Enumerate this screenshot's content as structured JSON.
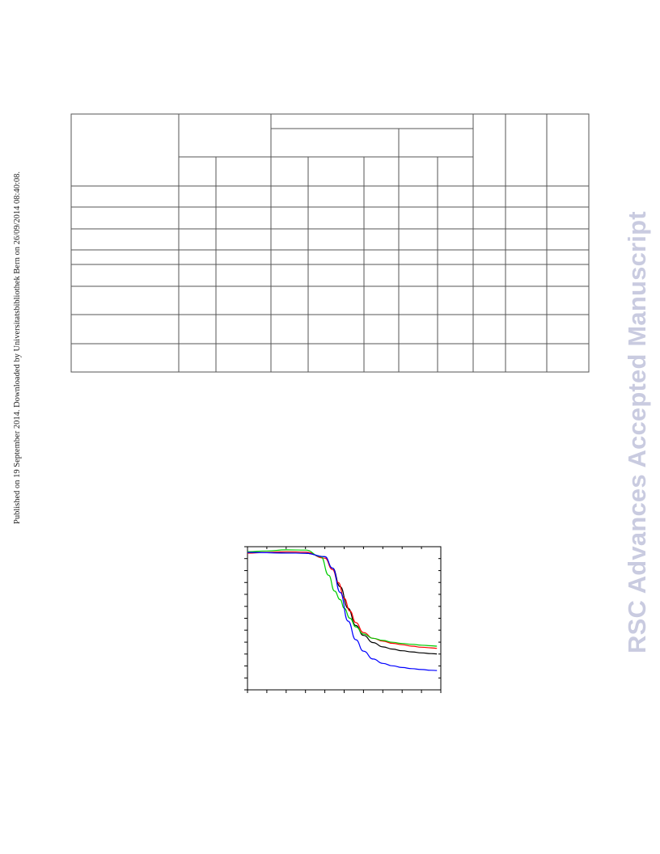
{
  "side_note": "Published on 19 September 2014. Downloaded by Universitatsbibliothek Bern on 26/09/2014 08:40:08.",
  "watermark": "RSC Advances Accepted Manuscript",
  "table": {
    "header_rows": 3,
    "body_rows": 8,
    "columns": 11,
    "cells": []
  },
  "chart_data": {
    "type": "line",
    "title": "",
    "xlabel": "",
    "ylabel": "",
    "tick_labels_visible": false,
    "x_scale": "linear",
    "y_scale": "linear",
    "xlim": [
      0,
      100
    ],
    "ylim": [
      0,
      100
    ],
    "grid": false,
    "x_major_ticks": [
      0,
      10,
      20,
      30,
      40,
      50,
      60,
      70,
      80,
      90,
      100
    ],
    "y_major_ticks": [
      0,
      8.3,
      16.7,
      25,
      33.3,
      41.7,
      50,
      58.3,
      66.7,
      75,
      83.3,
      91.7,
      100
    ],
    "series": [
      {
        "color": "#000000",
        "x": [
          0,
          10,
          20,
          30,
          40,
          44,
          48,
          52,
          56,
          60,
          65,
          70,
          75,
          80,
          85,
          90,
          95,
          98
        ],
        "y": [
          96,
          95.8,
          95.6,
          95.4,
          93,
          85,
          72,
          57,
          45,
          38,
          33,
          30,
          28.5,
          27.3,
          26.5,
          25.8,
          25.3,
          25.1
        ]
      },
      {
        "color": "#ff0000",
        "x": [
          0,
          10,
          20,
          30,
          40,
          44,
          47,
          50,
          53,
          56,
          60,
          65,
          70,
          75,
          80,
          85,
          90,
          95,
          98
        ],
        "y": [
          95.5,
          96,
          96.5,
          96.2,
          92,
          84,
          75,
          64,
          55,
          47,
          40,
          36,
          34,
          32.5,
          31.5,
          30.5,
          29.8,
          29.3,
          29
        ]
      },
      {
        "color": "#00cc00",
        "x": [
          0,
          10,
          20,
          30,
          38,
          42,
          45,
          48,
          50,
          53,
          56,
          60,
          65,
          70,
          75,
          80,
          85,
          90,
          95,
          98
        ],
        "y": [
          96.5,
          97,
          97.8,
          97.6,
          93,
          80,
          69,
          63,
          57,
          50,
          44,
          39,
          36,
          34.5,
          33.2,
          32.4,
          31.8,
          31.2,
          30.8,
          30.5
        ]
      },
      {
        "color": "#0000ff",
        "x": [
          0,
          10,
          20,
          30,
          40,
          44,
          48,
          52,
          56,
          60,
          65,
          70,
          75,
          80,
          85,
          90,
          95,
          98
        ],
        "y": [
          96,
          95.8,
          95.6,
          95.4,
          93,
          85,
          68,
          48,
          35,
          27,
          21.5,
          18.5,
          16.8,
          15.6,
          14.8,
          14.2,
          13.7,
          13.5
        ]
      }
    ]
  }
}
